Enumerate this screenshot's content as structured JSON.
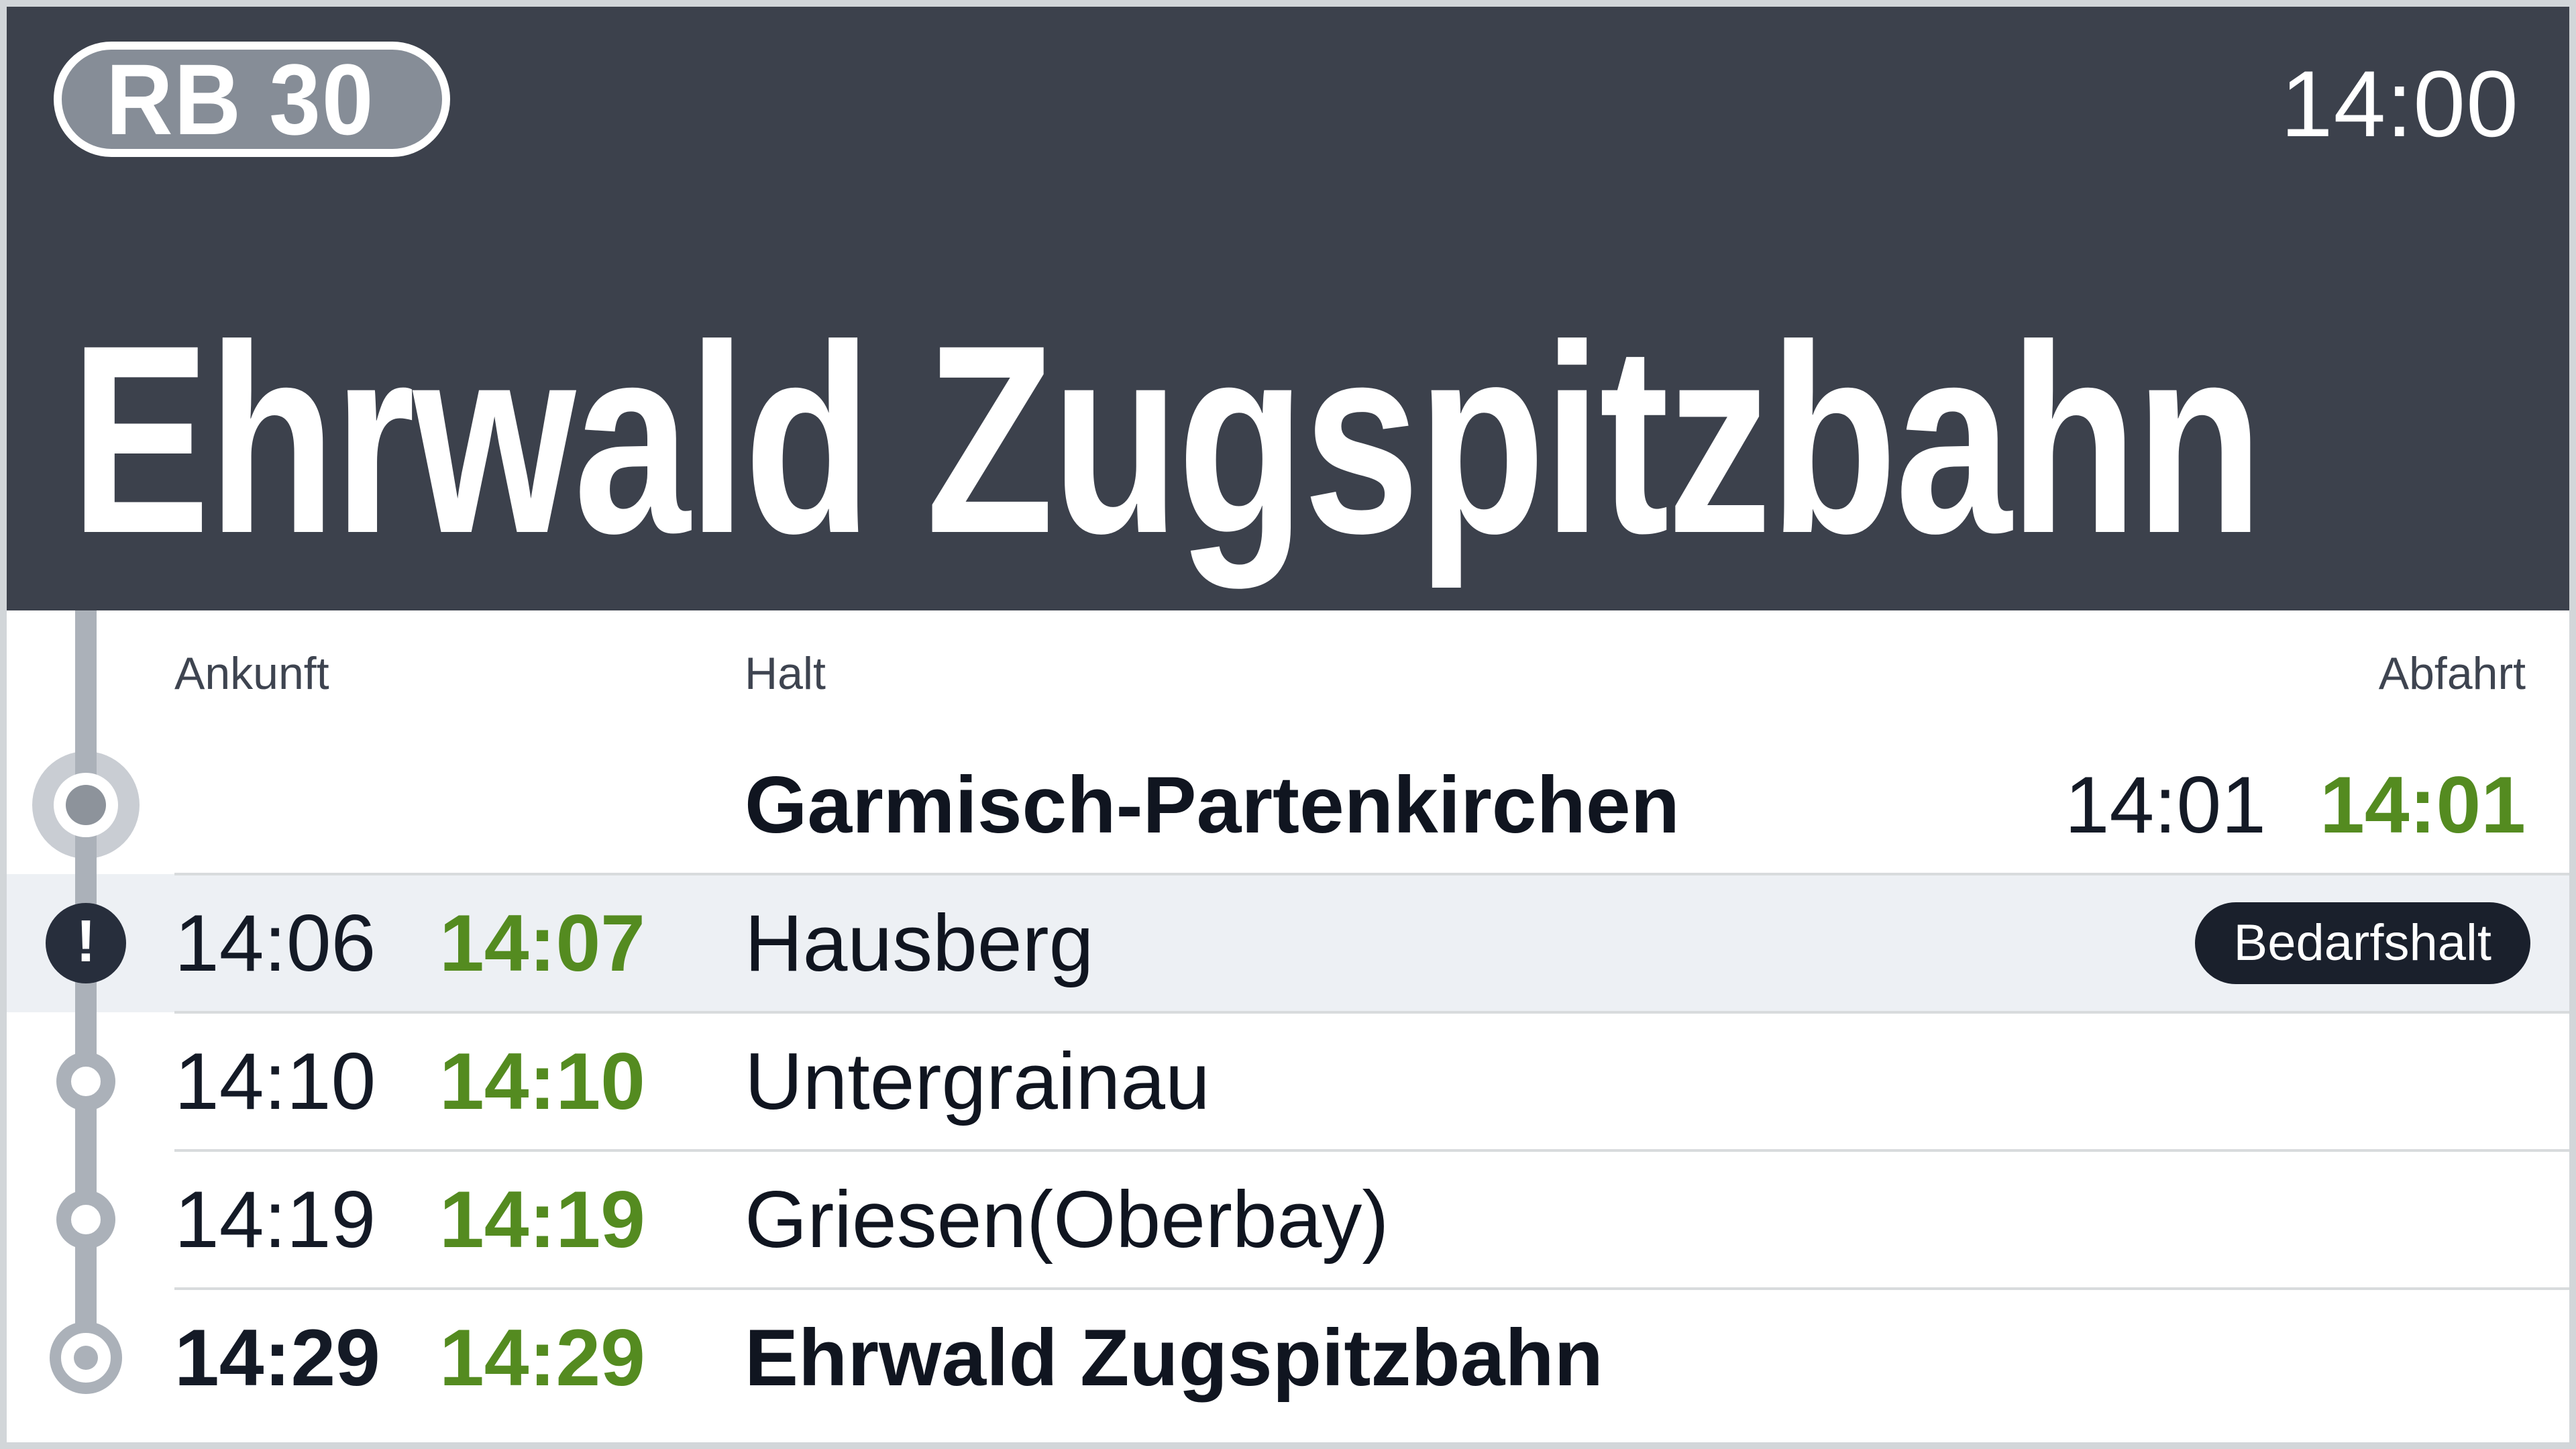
{
  "header": {
    "line": "RB 30",
    "clock": "14:00",
    "destination": "Ehrwald Zugspitzbahn"
  },
  "columns": {
    "arrival": "Ankunft",
    "stop": "Halt",
    "departure": "Abfahrt"
  },
  "stops": [
    {
      "name": "Garmisch-Partenkirchen",
      "name_bold": true,
      "marker": "origin",
      "arrival": "",
      "arrival_rt": "",
      "departure": "14:01",
      "departure_rt": "14:01",
      "arrival_bold": false,
      "highlight": false,
      "badge": ""
    },
    {
      "name": "Hausberg",
      "name_bold": false,
      "marker": "alert",
      "arrival": "14:06",
      "arrival_rt": "14:07",
      "departure": "",
      "departure_rt": "",
      "arrival_bold": false,
      "highlight": true,
      "badge": "Bedarfshalt"
    },
    {
      "name": "Untergrainau",
      "name_bold": false,
      "marker": "stop",
      "arrival": "14:10",
      "arrival_rt": "14:10",
      "departure": "",
      "departure_rt": "",
      "arrival_bold": false,
      "highlight": false,
      "badge": ""
    },
    {
      "name": "Griesen(Oberbay)",
      "name_bold": false,
      "marker": "stop",
      "arrival": "14:19",
      "arrival_rt": "14:19",
      "departure": "",
      "departure_rt": "",
      "arrival_bold": false,
      "highlight": false,
      "badge": ""
    },
    {
      "name": "Ehrwald Zugspitzbahn",
      "name_bold": true,
      "marker": "destination",
      "arrival": "14:29",
      "arrival_rt": "14:29",
      "departure": "",
      "departure_rt": "",
      "arrival_bold": true,
      "highlight": false,
      "badge": ""
    }
  ],
  "icons": {
    "alert": "!",
    "alert_meaning": "request-stop-alert-icon",
    "origin_meaning": "origin-station-marker",
    "stop_meaning": "intermediate-station-marker",
    "destination_meaning": "destination-station-marker"
  },
  "colors": {
    "header_background": "#3c414c",
    "line_badge_fill": "#868d97",
    "realtime_green": "#548b20",
    "planned_time_dark": "#141a26",
    "highlight_row": "#edf0f4",
    "divider": "#d8dbdd",
    "timeline_gray": "#abb1b9",
    "badge_pill": "#1a202c",
    "frame_border": "#d2d6d9"
  }
}
